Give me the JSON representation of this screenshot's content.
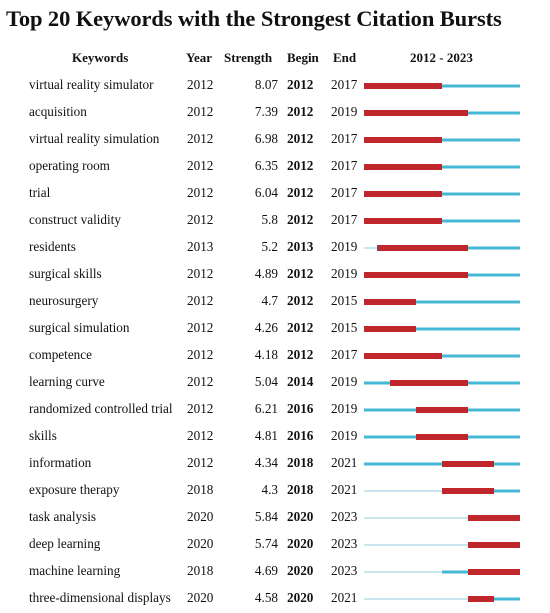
{
  "title": "Top 20 Keywords with the Strongest Citation Bursts",
  "headers": {
    "keywords": "Keywords",
    "year": "Year",
    "strength": "Strength",
    "begin": "Begin",
    "end": "End",
    "range": "2012 - 2023"
  },
  "colors": {
    "base": "#45b8d4",
    "burst": "#c0272d"
  },
  "chart_data": {
    "type": "table",
    "timeline": {
      "start": 2012,
      "end": 2023
    },
    "columns": [
      "Keywords",
      "Year",
      "Strength",
      "Begin",
      "End",
      "2012 - 2023"
    ],
    "rows": [
      {
        "keyword": "virtual reality simulator",
        "year": "2012",
        "strength": "8.07",
        "begin": "2012",
        "end": "2017"
      },
      {
        "keyword": "acquisition",
        "year": "2012",
        "strength": "7.39",
        "begin": "2012",
        "end": "2019"
      },
      {
        "keyword": "virtual reality simulation",
        "year": "2012",
        "strength": "6.98",
        "begin": "2012",
        "end": "2017"
      },
      {
        "keyword": "operating room",
        "year": "2012",
        "strength": "6.35",
        "begin": "2012",
        "end": "2017"
      },
      {
        "keyword": "trial",
        "year": "2012",
        "strength": "6.04",
        "begin": "2012",
        "end": "2017"
      },
      {
        "keyword": "construct validity",
        "year": "2012",
        "strength": "5.8",
        "begin": "2012",
        "end": "2017"
      },
      {
        "keyword": "residents",
        "year": "2013",
        "strength": "5.2",
        "begin": "2013",
        "end": "2019"
      },
      {
        "keyword": "surgical skills",
        "year": "2012",
        "strength": "4.89",
        "begin": "2012",
        "end": "2019"
      },
      {
        "keyword": "neurosurgery",
        "year": "2012",
        "strength": "4.7",
        "begin": "2012",
        "end": "2015"
      },
      {
        "keyword": "surgical simulation",
        "year": "2012",
        "strength": "4.26",
        "begin": "2012",
        "end": "2015"
      },
      {
        "keyword": "competence",
        "year": "2012",
        "strength": "4.18",
        "begin": "2012",
        "end": "2017"
      },
      {
        "keyword": "learning curve",
        "year": "2012",
        "strength": "5.04",
        "begin": "2014",
        "end": "2019"
      },
      {
        "keyword": "randomized controlled trial",
        "year": "2012",
        "strength": "6.21",
        "begin": "2016",
        "end": "2019"
      },
      {
        "keyword": "skills",
        "year": "2012",
        "strength": "4.81",
        "begin": "2016",
        "end": "2019"
      },
      {
        "keyword": "information",
        "year": "2012",
        "strength": "4.34",
        "begin": "2018",
        "end": "2021"
      },
      {
        "keyword": "exposure therapy",
        "year": "2018",
        "strength": "4.3",
        "begin": "2018",
        "end": "2021"
      },
      {
        "keyword": "task analysis",
        "year": "2020",
        "strength": "5.84",
        "begin": "2020",
        "end": "2023"
      },
      {
        "keyword": "deep learning",
        "year": "2020",
        "strength": "5.74",
        "begin": "2020",
        "end": "2023"
      },
      {
        "keyword": "machine learning",
        "year": "2018",
        "strength": "4.69",
        "begin": "2020",
        "end": "2023"
      },
      {
        "keyword": "three-dimensional displays",
        "year": "2020",
        "strength": "4.58",
        "begin": "2020",
        "end": "2021"
      }
    ]
  }
}
